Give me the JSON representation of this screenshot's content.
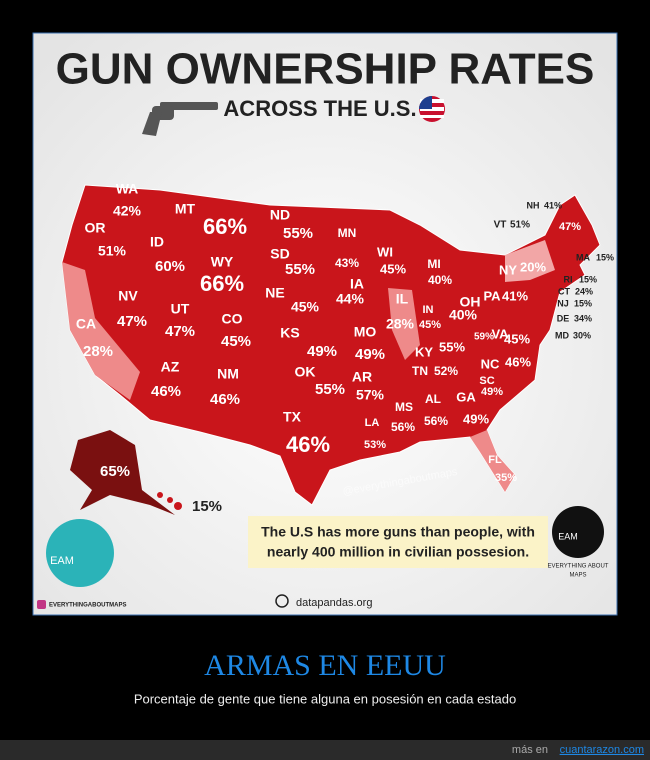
{
  "header": {
    "title": "GUN OWNERSHIP RATES",
    "subtitle": "ACROSS THE U.S."
  },
  "states": [
    {
      "abbr": "WA",
      "value": "42%"
    },
    {
      "abbr": "OR",
      "value": "51%"
    },
    {
      "abbr": "ID",
      "value": "60%"
    },
    {
      "abbr": "MT",
      "value": "66%"
    },
    {
      "abbr": "WY",
      "value": "66%"
    },
    {
      "abbr": "ND",
      "value": "55%"
    },
    {
      "abbr": "SD",
      "value": "55%"
    },
    {
      "abbr": "MN",
      "value": "43%"
    },
    {
      "abbr": "IA",
      "value": "44%"
    },
    {
      "abbr": "WI",
      "value": "45%"
    },
    {
      "abbr": "NE",
      "value": "45%"
    },
    {
      "abbr": "KS",
      "value": "49%"
    },
    {
      "abbr": "OK",
      "value": "55%"
    },
    {
      "abbr": "TX",
      "value": "46%"
    },
    {
      "abbr": "NM",
      "value": "46%"
    },
    {
      "abbr": "AZ",
      "value": "46%"
    },
    {
      "abbr": "NV",
      "value": "47%"
    },
    {
      "abbr": "UT",
      "value": "47%"
    },
    {
      "abbr": "CO",
      "value": "45%"
    },
    {
      "abbr": "CA",
      "value": "28%"
    },
    {
      "abbr": "MO",
      "value": "49%"
    },
    {
      "abbr": "AR",
      "value": "57%"
    },
    {
      "abbr": "LA",
      "value": "53%"
    },
    {
      "abbr": "MS",
      "value": "56%"
    },
    {
      "abbr": "AL",
      "value": "56%"
    },
    {
      "abbr": "GA",
      "value": "49%"
    },
    {
      "abbr": "FL",
      "value": "35%"
    },
    {
      "abbr": "IL",
      "value": "28%"
    },
    {
      "abbr": "MI",
      "value": "40%"
    },
    {
      "abbr": "IN",
      "value": "45%"
    },
    {
      "abbr": "OH",
      "value": "40%"
    },
    {
      "abbr": "KY",
      "value": "55%"
    },
    {
      "abbr": "TN",
      "value": "52%"
    },
    {
      "abbr": "SC",
      "value": "49%"
    },
    {
      "abbr": "NC",
      "value": "46%"
    },
    {
      "abbr": "VA",
      "value": "45%"
    },
    {
      "value": "59%"
    },
    {
      "abbr": "PA",
      "value": "41%"
    },
    {
      "abbr": "NY",
      "value": "20%"
    },
    {
      "value": "47%"
    },
    {
      "abbr": "NH",
      "value": "41%"
    },
    {
      "abbr": "VT",
      "value": "51%"
    },
    {
      "abbr": "MA",
      "value": "15%"
    },
    {
      "abbr": "RI",
      "value": "15%"
    },
    {
      "abbr": "CT",
      "value": "24%"
    },
    {
      "abbr": "NJ",
      "value": "15%"
    },
    {
      "abbr": "DE",
      "value": "34%"
    },
    {
      "abbr": "MD",
      "value": "30%"
    },
    {
      "value": "65%"
    },
    {
      "value": "15%"
    }
  ],
  "watermark": "@everythingaboutmaps",
  "note": [
    "The U.S has more guns than people, with",
    "nearly 400 million in civilian possesion."
  ],
  "logo_left": "EAM",
  "logo_right": {
    "mark": "EAM",
    "caption": [
      "EVERYTHING ABOUT",
      "MAPS"
    ]
  },
  "instagram": "EVERYTHINGABOUTMAPS",
  "source": "datapandas.org",
  "caption": {
    "title": "ARMAS EN EEUU",
    "subtitle": "Porcentaje de gente que tiene alguna en posesión en cada estado"
  },
  "footer": {
    "text": "más en",
    "link": "cuantarazon.com"
  }
}
